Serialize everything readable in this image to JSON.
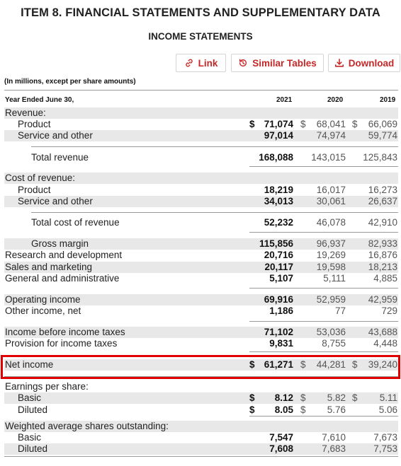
{
  "header": {
    "title": "ITEM 8. FINANCIAL STATEMENTS AND SUPPLEMENTARY DATA",
    "subtitle": "INCOME STATEMENTS"
  },
  "toolbar": {
    "link_label": "Link",
    "similar_label": "Similar Tables",
    "download_label": "Download",
    "accent_color": "#c62828"
  },
  "note": "(In millions, except per share amounts)",
  "columns": {
    "label": "Year Ended June 30,",
    "years": [
      "2021",
      "2020",
      "2019"
    ]
  },
  "rows": [
    {
      "label": "Revenue:",
      "values": [
        "",
        "",
        ""
      ]
    },
    {
      "label": "Product",
      "values": [
        "71,074",
        "68,041",
        "66,069"
      ],
      "dollar": true
    },
    {
      "label": "Service and other",
      "values": [
        "97,014",
        "74,974",
        "59,774"
      ]
    },
    {
      "label": "Total revenue",
      "values": [
        "168,088",
        "143,015",
        "125,843"
      ]
    },
    {
      "label": "Cost of revenue:",
      "values": [
        "",
        "",
        ""
      ]
    },
    {
      "label": "Product",
      "values": [
        "18,219",
        "16,017",
        "16,273"
      ]
    },
    {
      "label": "Service and other",
      "values": [
        "34,013",
        "30,061",
        "26,637"
      ]
    },
    {
      "label": "Total cost of revenue",
      "values": [
        "52,232",
        "46,078",
        "42,910"
      ]
    },
    {
      "label": "Gross margin",
      "values": [
        "115,856",
        "96,937",
        "82,933"
      ]
    },
    {
      "label": "Research and development",
      "values": [
        "20,716",
        "19,269",
        "16,876"
      ]
    },
    {
      "label": "Sales and marketing",
      "values": [
        "20,117",
        "19,598",
        "18,213"
      ]
    },
    {
      "label": "General and administrative",
      "values": [
        "5,107",
        "5,111",
        "4,885"
      ]
    },
    {
      "label": "Operating income",
      "values": [
        "69,916",
        "52,959",
        "42,959"
      ]
    },
    {
      "label": "Other income, net",
      "values": [
        "1,186",
        "77",
        "729"
      ]
    },
    {
      "label": "Income before income taxes",
      "values": [
        "71,102",
        "53,036",
        "43,688"
      ]
    },
    {
      "label": "Provision for income taxes",
      "values": [
        "9,831",
        "8,755",
        "4,448"
      ]
    },
    {
      "label": "Net income",
      "values": [
        "61,271",
        "44,281",
        "39,240"
      ],
      "dollar": true,
      "highlighted": true
    },
    {
      "label": "Earnings per share:",
      "values": [
        "",
        "",
        ""
      ]
    },
    {
      "label": "Basic",
      "values": [
        "8.12",
        "5.82",
        "5.11"
      ],
      "dollar": true
    },
    {
      "label": "Diluted",
      "values": [
        "8.05",
        "5.76",
        "5.06"
      ],
      "dollar": true
    },
    {
      "label": "Weighted average shares outstanding:",
      "values": [
        "",
        "",
        ""
      ]
    },
    {
      "label": "Basic",
      "values": [
        "7,547",
        "7,610",
        "7,673"
      ]
    },
    {
      "label": "Diluted",
      "values": [
        "7,608",
        "7,683",
        "7,753"
      ]
    }
  ],
  "currency_symbol": "$",
  "highlight_color": "#e00000"
}
